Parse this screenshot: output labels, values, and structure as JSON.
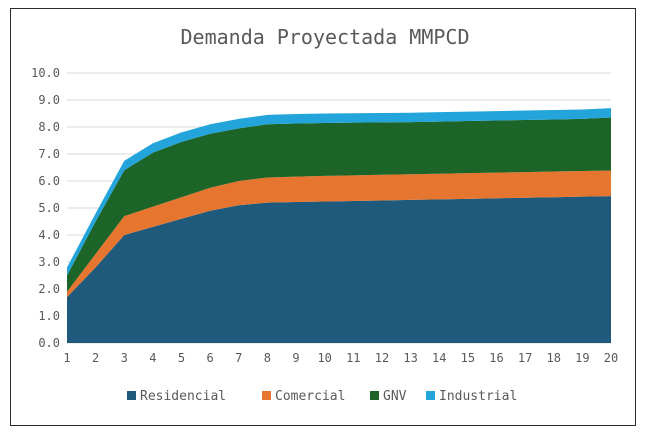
{
  "chart_data": {
    "type": "area",
    "stacked": true,
    "title": "Demanda Proyectada MMPCD",
    "xlabel": "",
    "ylabel": "",
    "x": [
      1,
      2,
      3,
      4,
      5,
      6,
      7,
      8,
      9,
      10,
      11,
      12,
      13,
      14,
      15,
      16,
      17,
      18,
      19,
      20
    ],
    "ylim": [
      0,
      10
    ],
    "yticks": [
      "0.0",
      "1.0",
      "2.0",
      "3.0",
      "4.0",
      "5.0",
      "6.0",
      "7.0",
      "8.0",
      "9.0",
      "10.0"
    ],
    "grid": true,
    "legend_position": "bottom",
    "series": [
      {
        "name": "Residencial",
        "color": "#1f5a7d",
        "values": [
          1.7,
          2.8,
          4.0,
          4.3,
          4.6,
          4.9,
          5.1,
          5.2,
          5.22,
          5.24,
          5.26,
          5.28,
          5.3,
          5.32,
          5.34,
          5.36,
          5.38,
          5.4,
          5.42,
          5.44
        ]
      },
      {
        "name": "Comercial",
        "color": "#e6762f",
        "values": [
          0.2,
          0.5,
          0.7,
          0.75,
          0.8,
          0.85,
          0.9,
          0.93,
          0.94,
          0.95,
          0.95,
          0.95,
          0.95,
          0.95,
          0.95,
          0.95,
          0.95,
          0.95,
          0.95,
          0.95
        ]
      },
      {
        "name": "GNV",
        "color": "#1c6428",
        "values": [
          0.6,
          1.2,
          1.7,
          2.0,
          2.05,
          2.0,
          1.95,
          1.97,
          1.97,
          1.96,
          1.95,
          1.94,
          1.93,
          1.93,
          1.93,
          1.93,
          1.93,
          1.93,
          1.93,
          1.96
        ]
      },
      {
        "name": "Industrial",
        "color": "#23a5dc",
        "values": [
          0.3,
          0.3,
          0.35,
          0.35,
          0.35,
          0.35,
          0.35,
          0.35,
          0.35,
          0.35,
          0.35,
          0.35,
          0.35,
          0.35,
          0.35,
          0.35,
          0.35,
          0.35,
          0.35,
          0.35
        ]
      }
    ]
  }
}
